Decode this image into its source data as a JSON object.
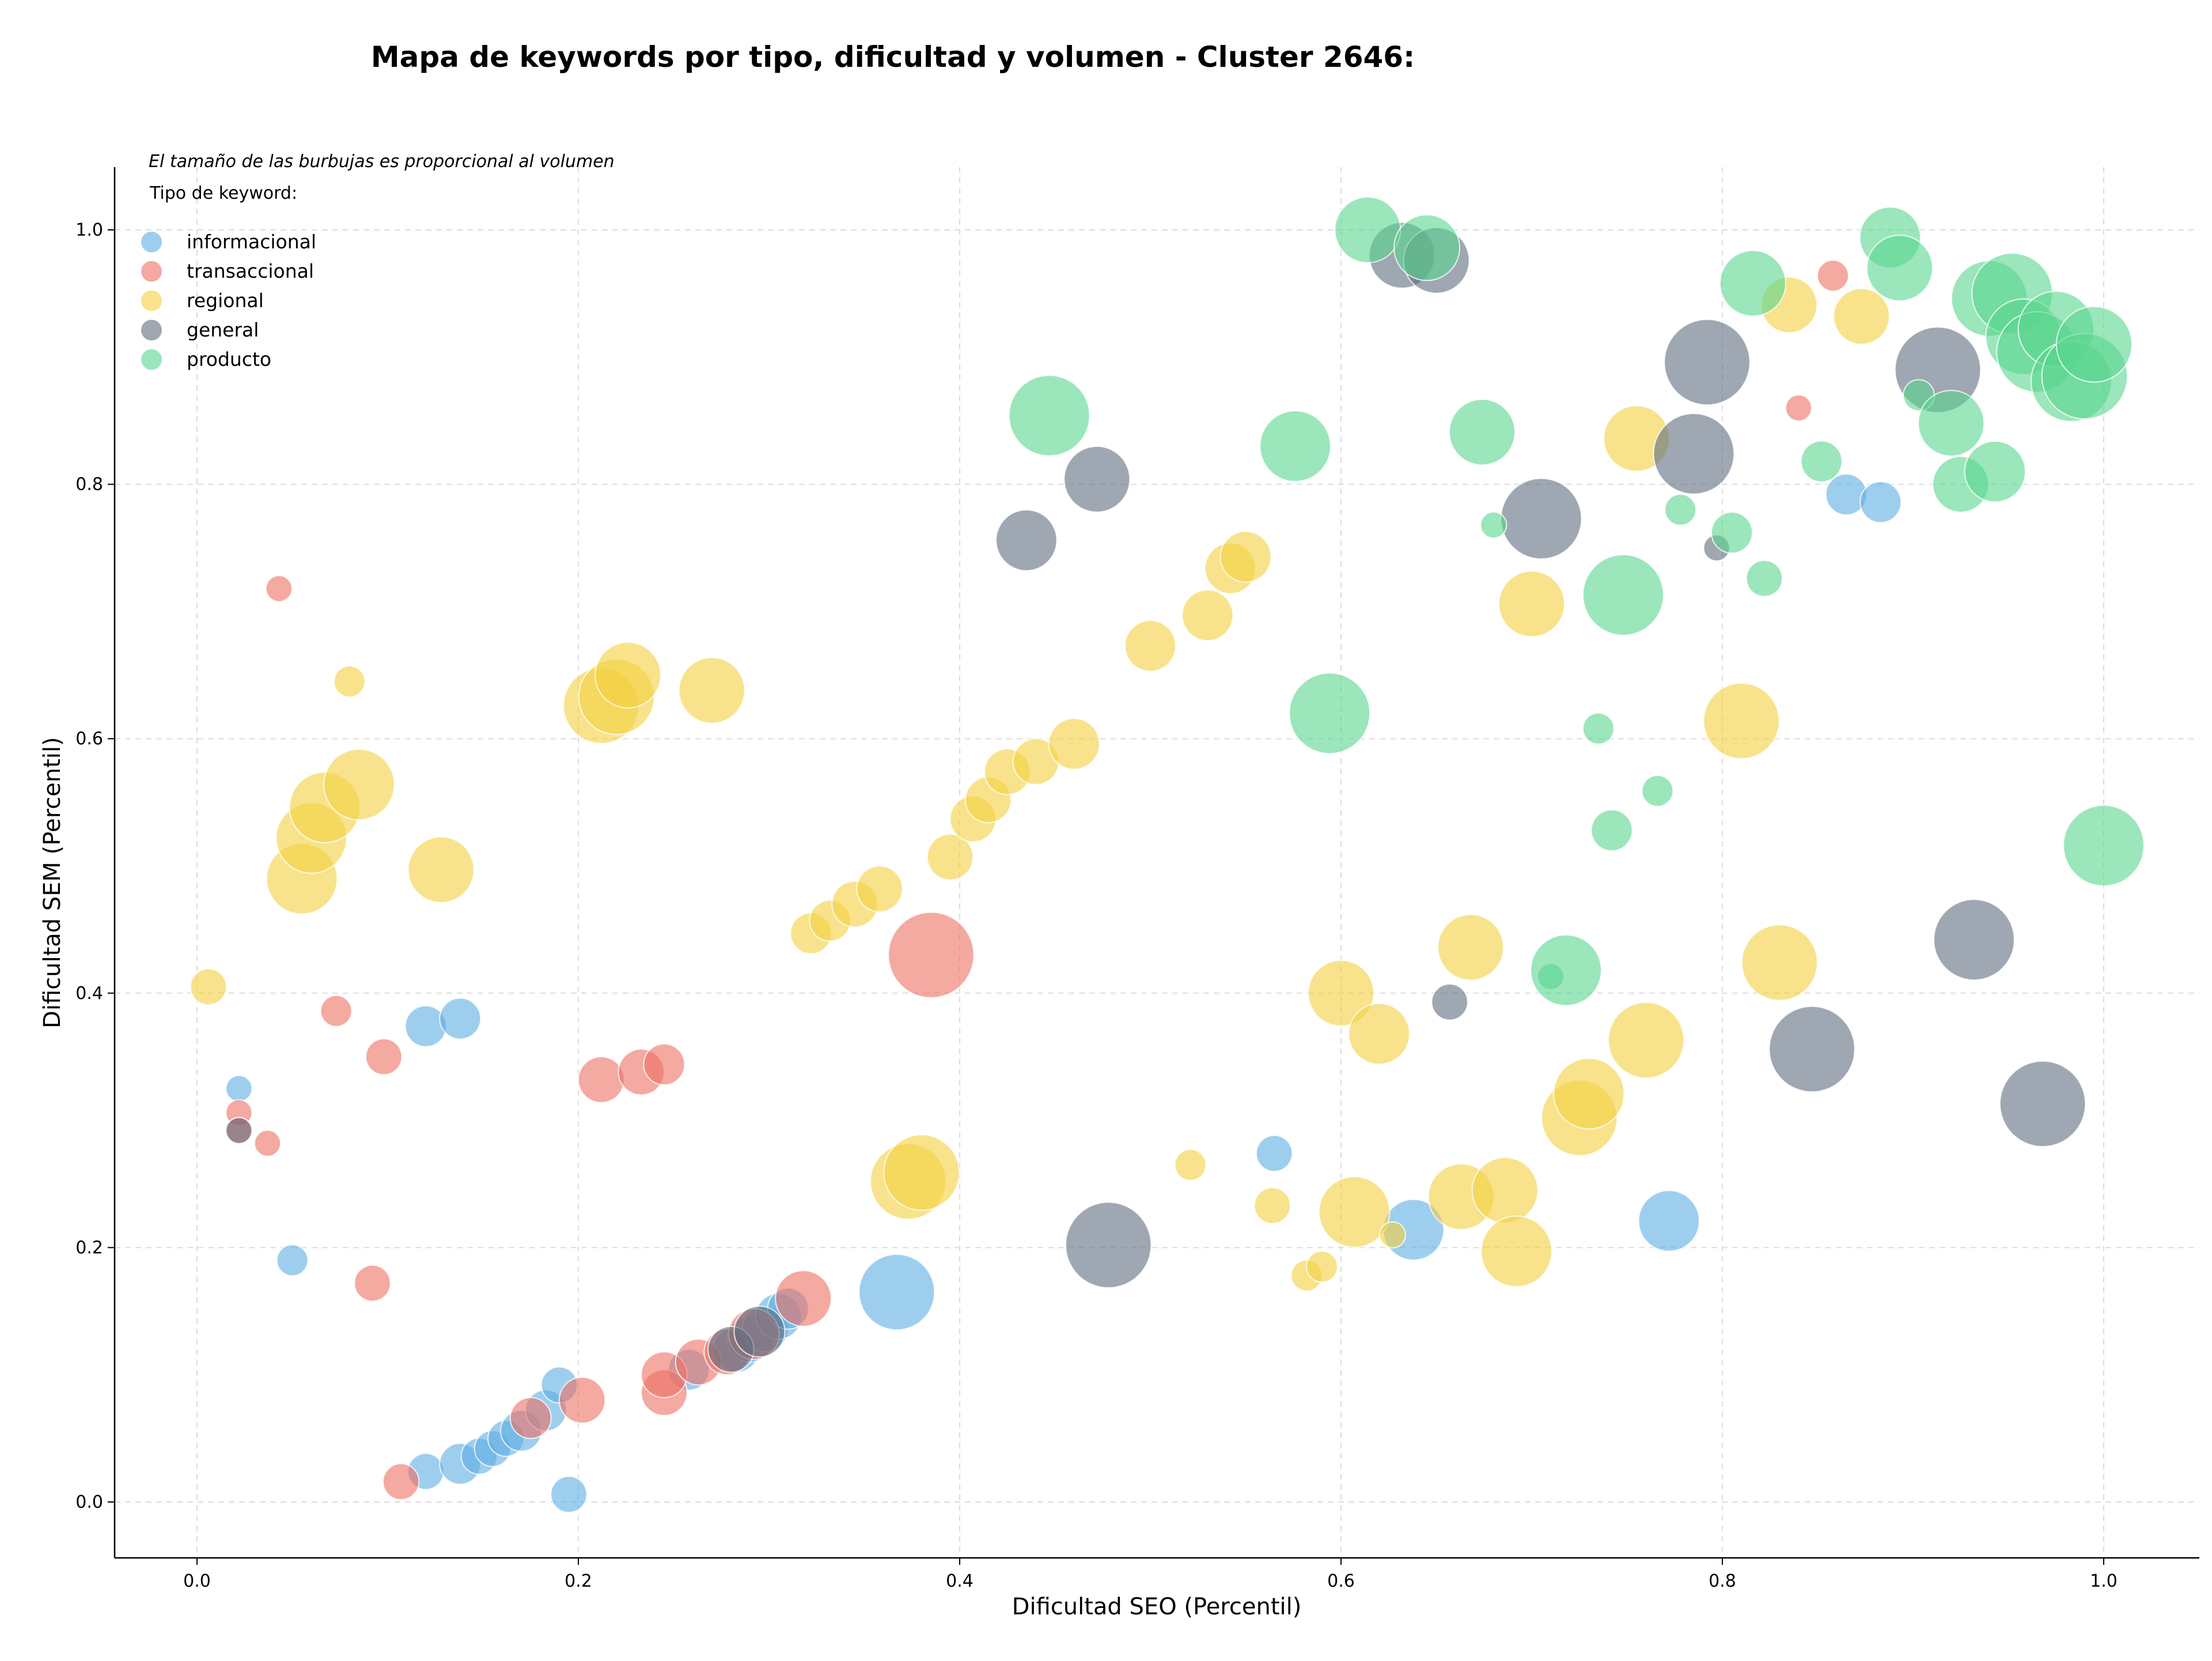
{
  "chart_data": {
    "type": "scatter",
    "title": "Mapa de keywords por tipo, dificultad y volumen - Cluster 2646:",
    "xlabel": "Dificultad SEO (Percentil)",
    "ylabel": "Dificultad SEM (Percentil)",
    "note": "El tamaño de las burbujas es proporcional al volumen",
    "legend_title": "Tipo de keyword:",
    "legend_position": "top-left",
    "grid": true,
    "xlim": [
      -0.04,
      1.05
    ],
    "ylim": [
      -0.04,
      1.05
    ],
    "x_ticks": [
      "0.0",
      "0.2",
      "0.4",
      "0.6",
      "0.8",
      "1.0"
    ],
    "y_ticks": [
      "0.0",
      "0.2",
      "0.4",
      "0.6",
      "0.8",
      "1.0"
    ],
    "series": [
      {
        "name": "informacional",
        "color": "#5dade2",
        "points": [
          {
            "x": 0.022,
            "y": 0.325,
            "v": 2
          },
          {
            "x": 0.05,
            "y": 0.19,
            "v": 3
          },
          {
            "x": 0.12,
            "y": 0.374,
            "v": 5
          },
          {
            "x": 0.138,
            "y": 0.38,
            "v": 5
          },
          {
            "x": 0.195,
            "y": 0.006,
            "v": 4
          },
          {
            "x": 0.12,
            "y": 0.024,
            "v": 4
          },
          {
            "x": 0.138,
            "y": 0.03,
            "v": 5
          },
          {
            "x": 0.148,
            "y": 0.036,
            "v": 4
          },
          {
            "x": 0.155,
            "y": 0.042,
            "v": 4
          },
          {
            "x": 0.162,
            "y": 0.05,
            "v": 4
          },
          {
            "x": 0.17,
            "y": 0.056,
            "v": 5
          },
          {
            "x": 0.183,
            "y": 0.072,
            "v": 5
          },
          {
            "x": 0.19,
            "y": 0.092,
            "v": 4
          },
          {
            "x": 0.258,
            "y": 0.104,
            "v": 5
          },
          {
            "x": 0.283,
            "y": 0.12,
            "v": 6
          },
          {
            "x": 0.29,
            "y": 0.128,
            "v": 6
          },
          {
            "x": 0.298,
            "y": 0.136,
            "v": 6
          },
          {
            "x": 0.305,
            "y": 0.146,
            "v": 6
          },
          {
            "x": 0.31,
            "y": 0.152,
            "v": 5
          },
          {
            "x": 0.367,
            "y": 0.165,
            "v": 12
          },
          {
            "x": 0.565,
            "y": 0.274,
            "v": 4
          },
          {
            "x": 0.638,
            "y": 0.214,
            "v": 9
          },
          {
            "x": 0.772,
            "y": 0.221,
            "v": 9
          },
          {
            "x": 0.865,
            "y": 0.792,
            "v": 5
          },
          {
            "x": 0.883,
            "y": 0.786,
            "v": 5
          }
        ]
      },
      {
        "name": "transaccional",
        "color": "#ec7063",
        "points": [
          {
            "x": 0.043,
            "y": 0.718,
            "v": 2
          },
          {
            "x": 0.022,
            "y": 0.306,
            "v": 2
          },
          {
            "x": 0.022,
            "y": 0.292,
            "v": 2
          },
          {
            "x": 0.037,
            "y": 0.282,
            "v": 2
          },
          {
            "x": 0.073,
            "y": 0.386,
            "v": 3
          },
          {
            "x": 0.098,
            "y": 0.35,
            "v": 4
          },
          {
            "x": 0.092,
            "y": 0.172,
            "v": 4
          },
          {
            "x": 0.107,
            "y": 0.016,
            "v": 4
          },
          {
            "x": 0.175,
            "y": 0.066,
            "v": 5
          },
          {
            "x": 0.202,
            "y": 0.08,
            "v": 6
          },
          {
            "x": 0.212,
            "y": 0.332,
            "v": 6
          },
          {
            "x": 0.233,
            "y": 0.338,
            "v": 6
          },
          {
            "x": 0.245,
            "y": 0.344,
            "v": 5
          },
          {
            "x": 0.245,
            "y": 0.086,
            "v": 6
          },
          {
            "x": 0.245,
            "y": 0.1,
            "v": 6
          },
          {
            "x": 0.263,
            "y": 0.11,
            "v": 6
          },
          {
            "x": 0.278,
            "y": 0.118,
            "v": 6
          },
          {
            "x": 0.292,
            "y": 0.132,
            "v": 7
          },
          {
            "x": 0.318,
            "y": 0.16,
            "v": 8
          },
          {
            "x": 0.385,
            "y": 0.43,
            "v": 14
          },
          {
            "x": 0.858,
            "y": 0.964,
            "v": 3
          },
          {
            "x": 0.84,
            "y": 0.86,
            "v": 2
          }
        ]
      },
      {
        "name": "regional",
        "color": "#f4d03f",
        "points": [
          {
            "x": 0.006,
            "y": 0.405,
            "v": 4
          },
          {
            "x": 0.08,
            "y": 0.645,
            "v": 3
          },
          {
            "x": 0.055,
            "y": 0.49,
            "v": 11
          },
          {
            "x": 0.06,
            "y": 0.522,
            "v": 11
          },
          {
            "x": 0.067,
            "y": 0.546,
            "v": 11
          },
          {
            "x": 0.085,
            "y": 0.564,
            "v": 11
          },
          {
            "x": 0.128,
            "y": 0.497,
            "v": 10
          },
          {
            "x": 0.212,
            "y": 0.626,
            "v": 12
          },
          {
            "x": 0.22,
            "y": 0.633,
            "v": 12
          },
          {
            "x": 0.226,
            "y": 0.65,
            "v": 10
          },
          {
            "x": 0.27,
            "y": 0.638,
            "v": 10
          },
          {
            "x": 0.322,
            "y": 0.447,
            "v": 5
          },
          {
            "x": 0.332,
            "y": 0.457,
            "v": 5
          },
          {
            "x": 0.345,
            "y": 0.47,
            "v": 6
          },
          {
            "x": 0.358,
            "y": 0.482,
            "v": 6
          },
          {
            "x": 0.373,
            "y": 0.252,
            "v": 12
          },
          {
            "x": 0.38,
            "y": 0.259,
            "v": 12
          },
          {
            "x": 0.395,
            "y": 0.507,
            "v": 6
          },
          {
            "x": 0.407,
            "y": 0.537,
            "v": 6
          },
          {
            "x": 0.415,
            "y": 0.552,
            "v": 6
          },
          {
            "x": 0.425,
            "y": 0.574,
            "v": 6
          },
          {
            "x": 0.44,
            "y": 0.582,
            "v": 6
          },
          {
            "x": 0.46,
            "y": 0.596,
            "v": 7
          },
          {
            "x": 0.5,
            "y": 0.673,
            "v": 7
          },
          {
            "x": 0.53,
            "y": 0.697,
            "v": 7
          },
          {
            "x": 0.542,
            "y": 0.734,
            "v": 7
          },
          {
            "x": 0.55,
            "y": 0.743,
            "v": 7
          },
          {
            "x": 0.521,
            "y": 0.265,
            "v": 3
          },
          {
            "x": 0.564,
            "y": 0.233,
            "v": 4
          },
          {
            "x": 0.582,
            "y": 0.178,
            "v": 3
          },
          {
            "x": 0.59,
            "y": 0.185,
            "v": 3
          },
          {
            "x": 0.6,
            "y": 0.4,
            "v": 10
          },
          {
            "x": 0.607,
            "y": 0.228,
            "v": 11
          },
          {
            "x": 0.62,
            "y": 0.368,
            "v": 9
          },
          {
            "x": 0.627,
            "y": 0.21,
            "v": 2
          },
          {
            "x": 0.663,
            "y": 0.24,
            "v": 10
          },
          {
            "x": 0.668,
            "y": 0.436,
            "v": 10
          },
          {
            "x": 0.686,
            "y": 0.245,
            "v": 10
          },
          {
            "x": 0.692,
            "y": 0.197,
            "v": 11
          },
          {
            "x": 0.7,
            "y": 0.706,
            "v": 10
          },
          {
            "x": 0.725,
            "y": 0.302,
            "v": 12
          },
          {
            "x": 0.73,
            "y": 0.321,
            "v": 11
          },
          {
            "x": 0.755,
            "y": 0.836,
            "v": 10
          },
          {
            "x": 0.76,
            "y": 0.363,
            "v": 12
          },
          {
            "x": 0.81,
            "y": 0.614,
            "v": 12
          },
          {
            "x": 0.83,
            "y": 0.424,
            "v": 12
          },
          {
            "x": 0.835,
            "y": 0.941,
            "v": 8
          },
          {
            "x": 0.873,
            "y": 0.932,
            "v": 8
          }
        ]
      },
      {
        "name": "general",
        "color": "#5d6d7e",
        "points": [
          {
            "x": 0.022,
            "y": 0.292,
            "v": 2
          },
          {
            "x": 0.28,
            "y": 0.12,
            "v": 6
          },
          {
            "x": 0.295,
            "y": 0.134,
            "v": 7
          },
          {
            "x": 0.435,
            "y": 0.756,
            "v": 9
          },
          {
            "x": 0.472,
            "y": 0.804,
            "v": 10
          },
          {
            "x": 0.478,
            "y": 0.202,
            "v": 14
          },
          {
            "x": 0.632,
            "y": 0.98,
            "v": 10
          },
          {
            "x": 0.65,
            "y": 0.976,
            "v": 10
          },
          {
            "x": 0.657,
            "y": 0.393,
            "v": 4
          },
          {
            "x": 0.705,
            "y": 0.773,
            "v": 13
          },
          {
            "x": 0.785,
            "y": 0.824,
            "v": 13
          },
          {
            "x": 0.792,
            "y": 0.896,
            "v": 14
          },
          {
            "x": 0.797,
            "y": 0.75,
            "v": 2
          },
          {
            "x": 0.847,
            "y": 0.356,
            "v": 14
          },
          {
            "x": 0.913,
            "y": 0.89,
            "v": 14
          },
          {
            "x": 0.932,
            "y": 0.442,
            "v": 13
          },
          {
            "x": 0.968,
            "y": 0.313,
            "v": 14
          }
        ]
      },
      {
        "name": "producto",
        "color": "#58d68d",
        "points": [
          {
            "x": 0.447,
            "y": 0.854,
            "v": 13
          },
          {
            "x": 0.576,
            "y": 0.83,
            "v": 11
          },
          {
            "x": 0.594,
            "y": 0.62,
            "v": 13
          },
          {
            "x": 0.614,
            "y": 1.0,
            "v": 10
          },
          {
            "x": 0.645,
            "y": 0.986,
            "v": 10
          },
          {
            "x": 0.674,
            "y": 0.841,
            "v": 10
          },
          {
            "x": 0.68,
            "y": 0.768,
            "v": 2
          },
          {
            "x": 0.71,
            "y": 0.413,
            "v": 2
          },
          {
            "x": 0.718,
            "y": 0.418,
            "v": 11
          },
          {
            "x": 0.735,
            "y": 0.608,
            "v": 3
          },
          {
            "x": 0.742,
            "y": 0.528,
            "v": 5
          },
          {
            "x": 0.748,
            "y": 0.713,
            "v": 13
          },
          {
            "x": 0.766,
            "y": 0.559,
            "v": 3
          },
          {
            "x": 0.778,
            "y": 0.78,
            "v": 3
          },
          {
            "x": 0.805,
            "y": 0.762,
            "v": 5
          },
          {
            "x": 0.816,
            "y": 0.958,
            "v": 10
          },
          {
            "x": 0.822,
            "y": 0.726,
            "v": 4
          },
          {
            "x": 0.852,
            "y": 0.818,
            "v": 5
          },
          {
            "x": 0.888,
            "y": 0.994,
            "v": 9
          },
          {
            "x": 0.893,
            "y": 0.97,
            "v": 10
          },
          {
            "x": 0.903,
            "y": 0.87,
            "v": 3
          },
          {
            "x": 0.92,
            "y": 0.848,
            "v": 10
          },
          {
            "x": 0.925,
            "y": 0.8,
            "v": 8
          },
          {
            "x": 0.943,
            "y": 0.81,
            "v": 9
          },
          {
            "x": 0.94,
            "y": 0.946,
            "v": 12
          },
          {
            "x": 0.952,
            "y": 0.95,
            "v": 13
          },
          {
            "x": 0.958,
            "y": 0.916,
            "v": 12
          },
          {
            "x": 0.965,
            "y": 0.904,
            "v": 13
          },
          {
            "x": 0.975,
            "y": 0.922,
            "v": 12
          },
          {
            "x": 0.983,
            "y": 0.881,
            "v": 13
          },
          {
            "x": 0.99,
            "y": 0.885,
            "v": 14
          },
          {
            "x": 0.995,
            "y": 0.91,
            "v": 12
          },
          {
            "x": 1.0,
            "y": 0.516,
            "v": 13
          }
        ]
      }
    ]
  }
}
